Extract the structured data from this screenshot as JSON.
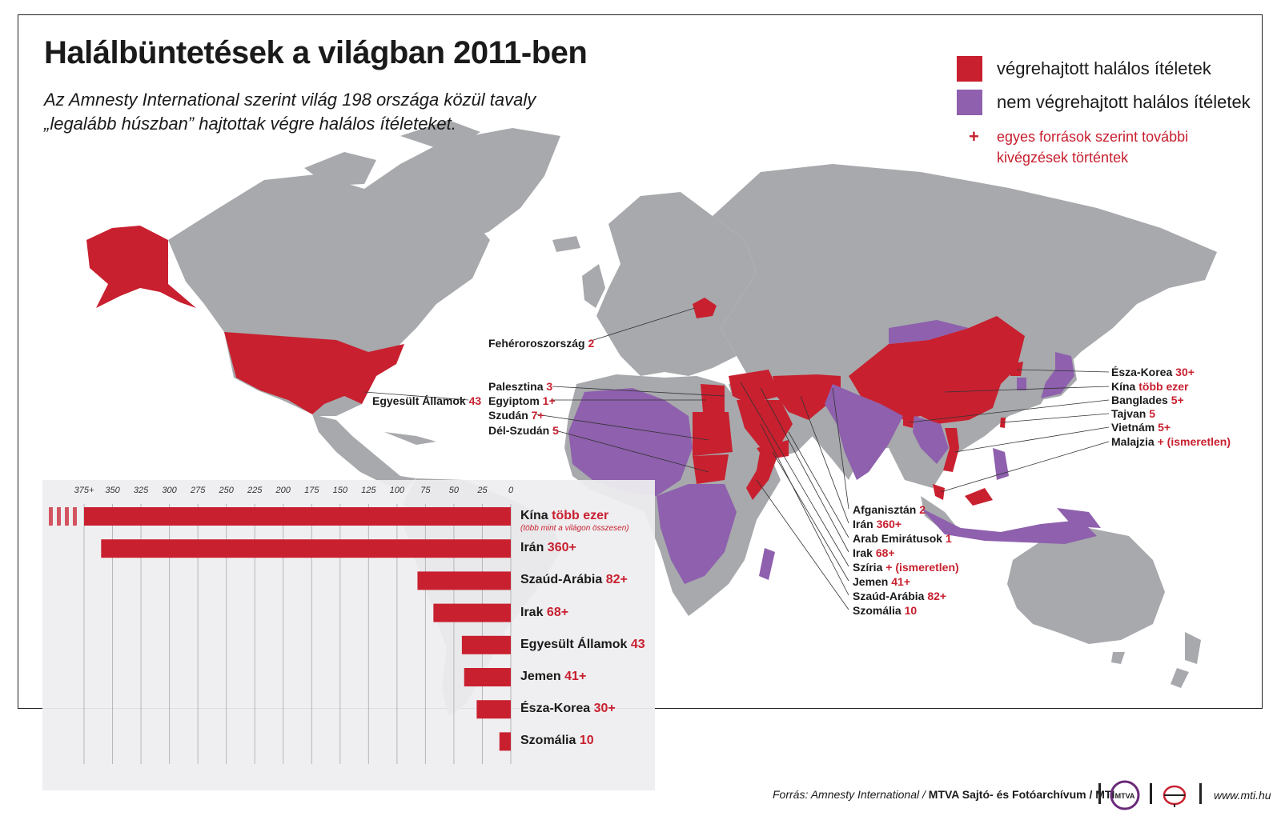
{
  "header": {
    "title": "Halálbüntetések a világban 2011-ben",
    "subtitle": "Az Amnesty International szerint világ 198 országa közül tavaly „legalább húszban” hajtottak végre halálos ítéleteket."
  },
  "legend": {
    "executed": {
      "label": "végrehajtott halálos ítéletek",
      "color": "#c8202f"
    },
    "not_executed": {
      "label": "nem végrehajtott halálos ítéletek",
      "color": "#8e60ad"
    },
    "plus_symbol": "+",
    "plus_note": "egyes források szerint további kivégzések történtek"
  },
  "colors": {
    "land": "#a7a9ac",
    "executed": "#c8202f",
    "not_executed": "#8e60ad",
    "ocean": "#ffffff"
  },
  "map_labels": {
    "belarus": {
      "name": "Fehéroroszország",
      "value": "2"
    },
    "usa": {
      "name": "Egyesült Államok",
      "value": "43"
    },
    "palestine": {
      "name": "Palesztina",
      "value": "3"
    },
    "egypt": {
      "name": "Egyiptom",
      "value": "1+"
    },
    "sudan": {
      "name": "Szudán",
      "value": "7+"
    },
    "south_sudan": {
      "name": "Dél-Szudán",
      "value": "5"
    },
    "north_korea": {
      "name": "Észa-Korea",
      "value": "30+"
    },
    "china": {
      "name": "Kína",
      "value": "több ezer"
    },
    "bangladesh": {
      "name": "Banglades",
      "value": "5+"
    },
    "taiwan": {
      "name": "Tajvan",
      "value": "5"
    },
    "vietnam": {
      "name": "Vietnám",
      "value": "5+"
    },
    "malaysia": {
      "name": "Malajzia",
      "value": "+ (ismeretlen)"
    },
    "afghanistan": {
      "name": "Afganisztán",
      "value": "2"
    },
    "iran": {
      "name": "Irán",
      "value": "360+"
    },
    "uae": {
      "name": "Arab Emirátusok",
      "value": "1"
    },
    "iraq": {
      "name": "Irak",
      "value": "68+"
    },
    "syria": {
      "name": "Szíria",
      "value": "+ (ismeretlen)"
    },
    "yemen": {
      "name": "Jemen",
      "value": "41+"
    },
    "saudi": {
      "name": "Szaúd-Arábia",
      "value": "82+"
    },
    "somalia": {
      "name": "Szomália",
      "value": "10"
    }
  },
  "chart_data": {
    "type": "bar",
    "orientation": "horizontal",
    "x_direction": "right-to-left",
    "xlim": [
      0,
      375
    ],
    "ticks": [
      {
        "value": 375,
        "label": "375+"
      },
      {
        "value": 350,
        "label": "350"
      },
      {
        "value": 325,
        "label": "325"
      },
      {
        "value": 300,
        "label": "300"
      },
      {
        "value": 275,
        "label": "275"
      },
      {
        "value": 250,
        "label": "250"
      },
      {
        "value": 225,
        "label": "225"
      },
      {
        "value": 200,
        "label": "200"
      },
      {
        "value": 175,
        "label": "175"
      },
      {
        "value": 150,
        "label": "150"
      },
      {
        "value": 125,
        "label": "125"
      },
      {
        "value": 100,
        "label": "100"
      },
      {
        "value": 75,
        "label": "75"
      },
      {
        "value": 50,
        "label": "50"
      },
      {
        "value": 25,
        "label": "25"
      },
      {
        "value": 0,
        "label": "0"
      }
    ],
    "grid": true,
    "bars": [
      {
        "category": "Kína",
        "value": 375,
        "value_label": "több ezer",
        "note": "(több mint a világon összesen)",
        "truncated": true
      },
      {
        "category": "Irán",
        "value": 360,
        "value_label": "360+"
      },
      {
        "category": "Szaúd-Arábia",
        "value": 82,
        "value_label": "82+"
      },
      {
        "category": "Irak",
        "value": 68,
        "value_label": "68+"
      },
      {
        "category": "Egyesült Államok",
        "value": 43,
        "value_label": "43"
      },
      {
        "category": "Jemen",
        "value": 41,
        "value_label": "41+"
      },
      {
        "category": "Észa-Korea",
        "value": 30,
        "value_label": "30+"
      },
      {
        "category": "Szomália",
        "value": 10,
        "value_label": "10"
      }
    ],
    "bar_color": "#c8202f"
  },
  "footer": {
    "source_prefix": "Forrás: Amnesty International / ",
    "source_bold": "MTVA Sajtó- és Fotóarchívum / MTI",
    "logo_text": "MTVA",
    "website": "www.mti.hu"
  }
}
